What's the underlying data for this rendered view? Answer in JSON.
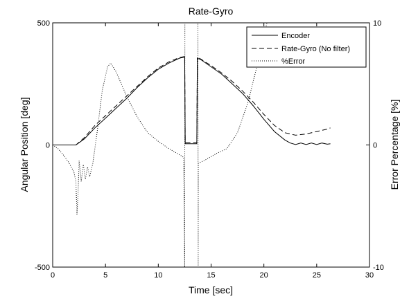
{
  "chart_data": {
    "type": "line",
    "title": "Rate-Gyro",
    "xlabel": "Time [sec]",
    "ylabel": "Angular Position [deg]",
    "y2label": "Error Percentage [%]",
    "xlim": [
      0,
      30
    ],
    "ylim": [
      -500,
      500
    ],
    "y2lim": [
      -10,
      10
    ],
    "xticks": [
      "0",
      "5",
      "10",
      "15",
      "20",
      "25",
      "30"
    ],
    "yticks": [
      "-500",
      "0",
      "500"
    ],
    "y2ticks": [
      "-10",
      "0",
      "10"
    ],
    "grid": false,
    "legend_position": "top-right",
    "series": [
      {
        "name": "Encoder",
        "axis": "left",
        "style": "solid",
        "points": [
          [
            0,
            0
          ],
          [
            2.2,
            0
          ],
          [
            3,
            25
          ],
          [
            4,
            70
          ],
          [
            5,
            110
          ],
          [
            6,
            150
          ],
          [
            7,
            190
          ],
          [
            8,
            235
          ],
          [
            9,
            275
          ],
          [
            10,
            310
          ],
          [
            11,
            335
          ],
          [
            12,
            355
          ],
          [
            12.5,
            360
          ],
          [
            12.55,
            5
          ],
          [
            13.65,
            5
          ],
          [
            13.7,
            355
          ],
          [
            14,
            350
          ],
          [
            15,
            320
          ],
          [
            16,
            290
          ],
          [
            17,
            250
          ],
          [
            18,
            210
          ],
          [
            19,
            160
          ],
          [
            20,
            105
          ],
          [
            21,
            55
          ],
          [
            22,
            20
          ],
          [
            22.5,
            8
          ],
          [
            23,
            2
          ],
          [
            23.5,
            8
          ],
          [
            24,
            2
          ],
          [
            24.5,
            8
          ],
          [
            25,
            2
          ],
          [
            25.5,
            8
          ],
          [
            26,
            3
          ],
          [
            26.3,
            5
          ]
        ]
      },
      {
        "name": "Rate-Gyro (No filter)",
        "axis": "left",
        "style": "dashed",
        "points": [
          [
            0,
            0
          ],
          [
            2.2,
            0
          ],
          [
            3,
            30
          ],
          [
            4,
            80
          ],
          [
            5,
            120
          ],
          [
            6,
            160
          ],
          [
            7,
            200
          ],
          [
            8,
            240
          ],
          [
            9,
            280
          ],
          [
            10,
            315
          ],
          [
            11,
            340
          ],
          [
            12,
            358
          ],
          [
            12.5,
            362
          ],
          [
            12.55,
            10
          ],
          [
            13.65,
            10
          ],
          [
            13.7,
            360
          ],
          [
            14,
            352
          ],
          [
            15,
            325
          ],
          [
            16,
            295
          ],
          [
            17,
            260
          ],
          [
            18,
            220
          ],
          [
            19,
            175
          ],
          [
            20,
            125
          ],
          [
            21,
            80
          ],
          [
            22,
            50
          ],
          [
            23,
            40
          ],
          [
            24,
            45
          ],
          [
            25,
            55
          ],
          [
            26,
            65
          ],
          [
            26.3,
            70
          ]
        ]
      },
      {
        "name": "%Error",
        "axis": "right",
        "style": "dotted",
        "points": [
          [
            0,
            0
          ],
          [
            0.5,
            -0.3
          ],
          [
            1,
            -0.8
          ],
          [
            1.5,
            -1.4
          ],
          [
            2,
            -2.2
          ],
          [
            2.2,
            -3
          ],
          [
            2.3,
            -5.7
          ],
          [
            2.4,
            -4
          ],
          [
            2.5,
            -1.3
          ],
          [
            2.7,
            -3
          ],
          [
            2.9,
            -1.6
          ],
          [
            3.1,
            -2.8
          ],
          [
            3.3,
            -1.8
          ],
          [
            3.5,
            -2.6
          ],
          [
            3.8,
            -1.5
          ],
          [
            4.2,
            1
          ],
          [
            4.7,
            4.5
          ],
          [
            5.2,
            6.4
          ],
          [
            5.5,
            6.7
          ],
          [
            6,
            6
          ],
          [
            7,
            4
          ],
          [
            8,
            2.3
          ],
          [
            9,
            1
          ],
          [
            10,
            0.3
          ],
          [
            11,
            -0.3
          ],
          [
            12,
            -0.8
          ],
          [
            12.4,
            -1
          ],
          [
            12.5,
            -10
          ],
          [
            12.52,
            10
          ],
          [
            13.75,
            10
          ],
          [
            13.78,
            -10
          ],
          [
            13.8,
            -1.5
          ],
          [
            14.5,
            -1.2
          ],
          [
            15.5,
            -0.7
          ],
          [
            16.5,
            -0.3
          ],
          [
            17.5,
            1
          ],
          [
            18.5,
            3.5
          ],
          [
            19.5,
            7
          ],
          [
            20,
            9
          ],
          [
            20.3,
            10
          ]
        ]
      }
    ]
  }
}
